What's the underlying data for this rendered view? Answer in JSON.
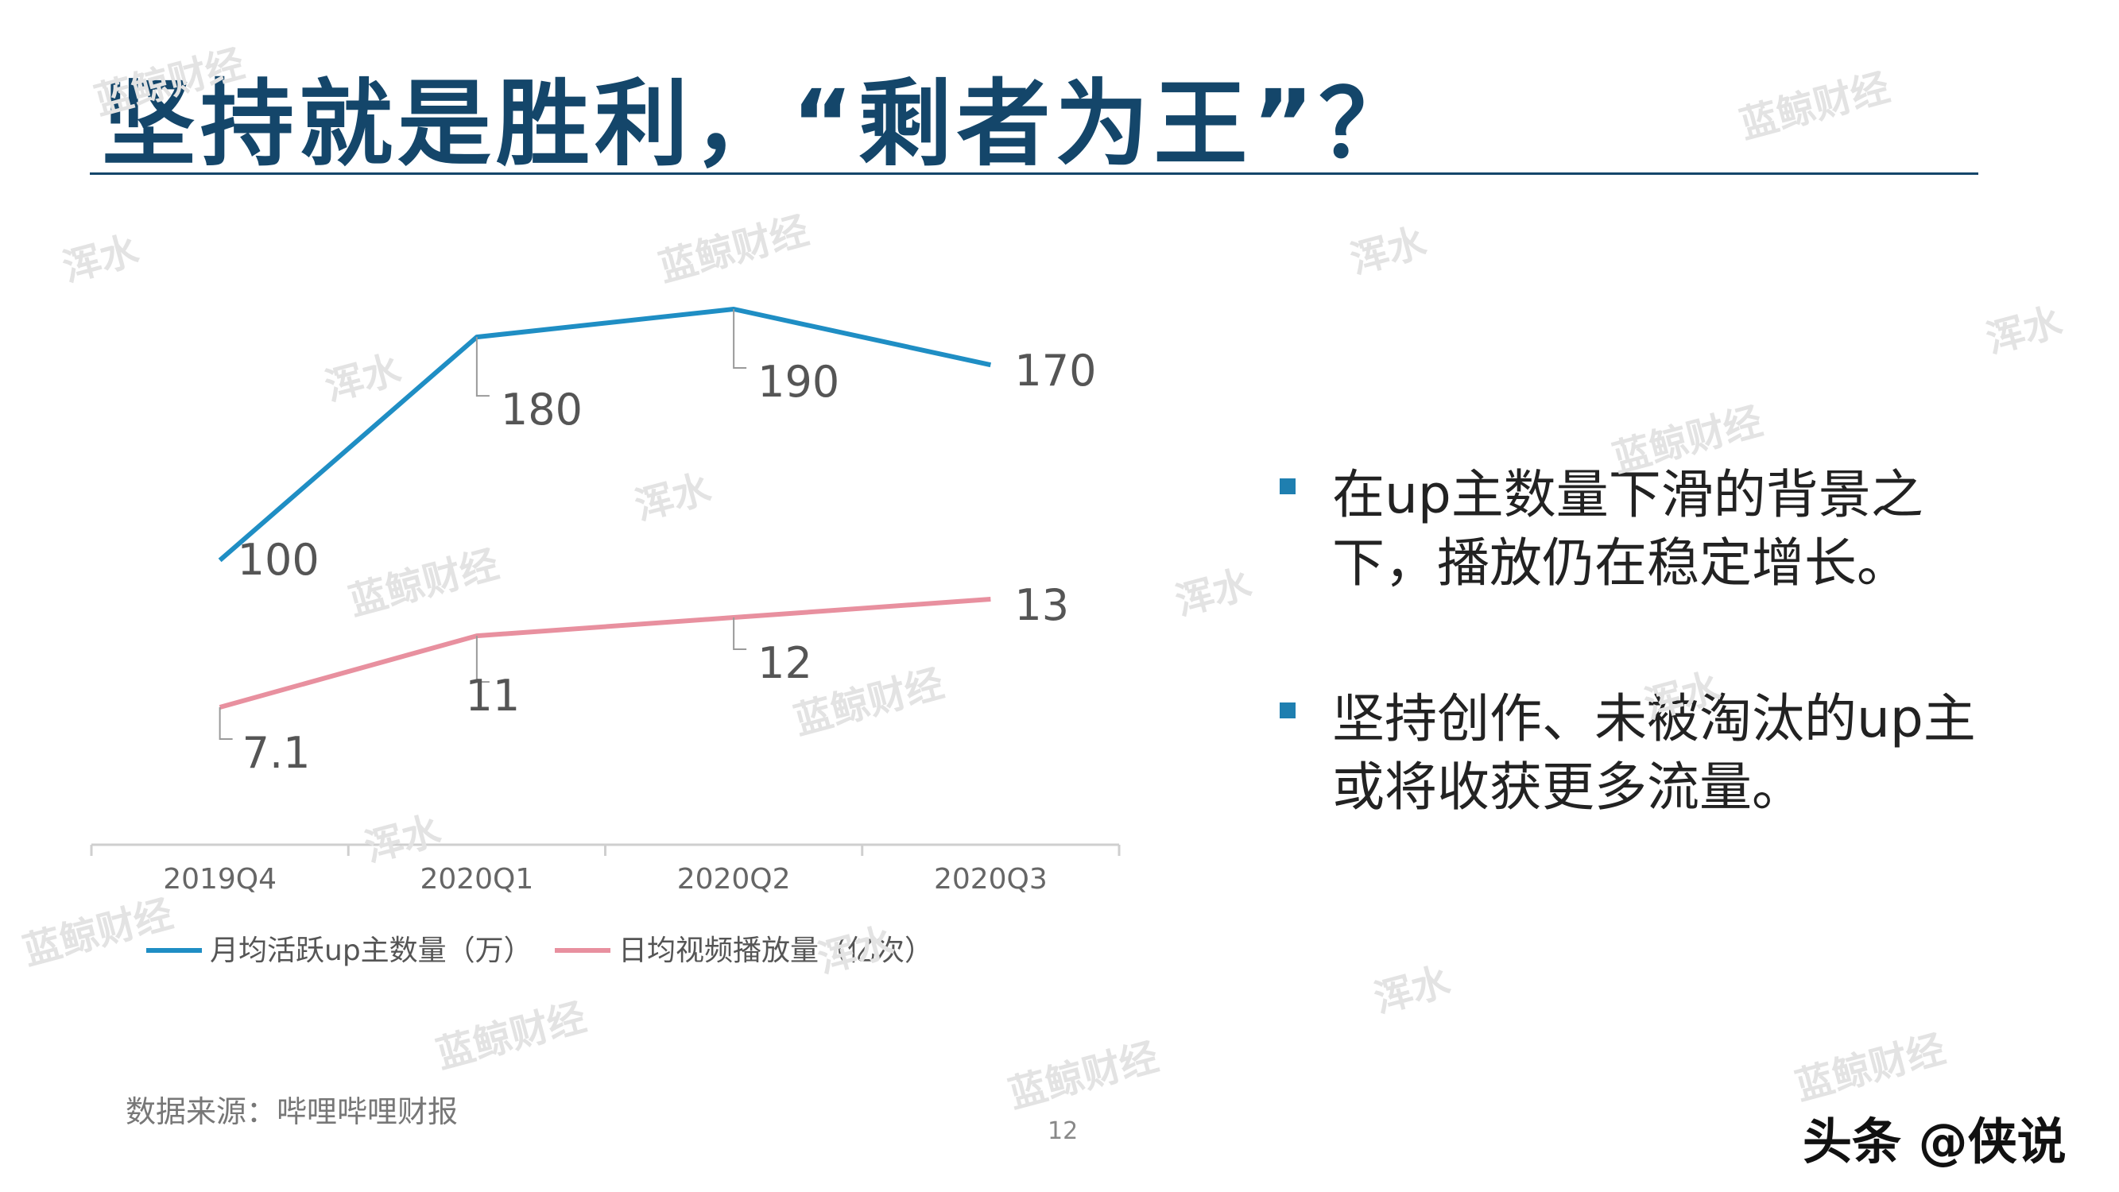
{
  "title": "坚持就是胜利，“剩者为王”？",
  "bullets": [
    "在up主数量下滑的背景之下，播放仍在稳定增长。",
    "坚持创作、未被淘汰的up主或将收获更多流量。"
  ],
  "source": "数据来源：哔哩哔哩财报",
  "page_number": "12",
  "brand": "头条 @侠说",
  "watermarks": [
    "蓝鲸财经",
    "浑水"
  ],
  "colors": {
    "title": "#14466a",
    "series_blue": "#1f8ec4",
    "series_pink": "#e8909f",
    "bullet": "#1f7fb0"
  },
  "chart_data": {
    "type": "line",
    "categories": [
      "2019Q4",
      "2020Q1",
      "2020Q2",
      "2020Q3"
    ],
    "series": [
      {
        "name": "月均活跃up主数量（万）",
        "values": [
          100,
          180,
          190,
          170
        ],
        "labels": [
          "100",
          "180",
          "190",
          "170"
        ],
        "color": "#1f8ec4"
      },
      {
        "name": "日均视频播放量（亿次）",
        "values": [
          7.1,
          11,
          12,
          13
        ],
        "labels": [
          "7.1",
          "11",
          "12",
          "13"
        ],
        "color": "#e8909f"
      }
    ],
    "legend_position": "bottom-left",
    "grid": false
  }
}
